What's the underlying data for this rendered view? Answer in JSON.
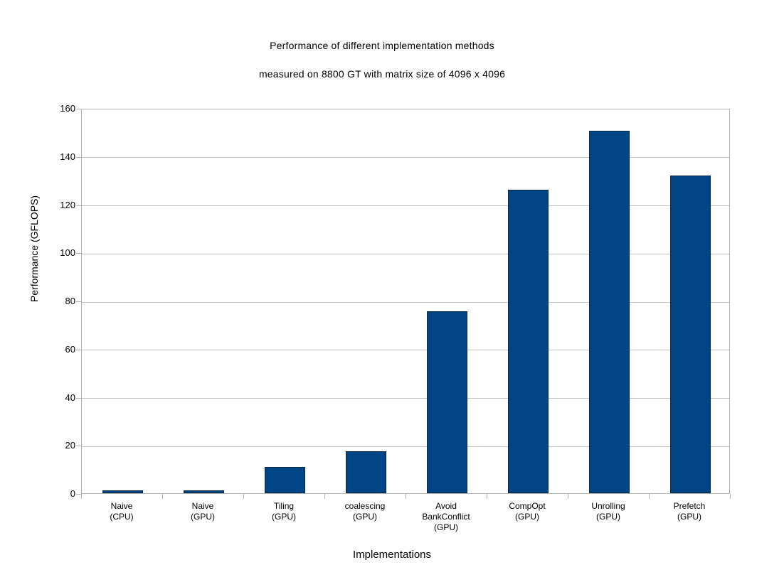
{
  "chart_data": {
    "type": "bar",
    "title": "Performance of different implementation methods",
    "subtitle": "measured on 8800 GT with matrix size of 4096 x 4096",
    "xlabel": "Implementations",
    "ylabel": "Performance (GFLOPS)",
    "categories": [
      "Naive (CPU)",
      "Naive (GPU)",
      "Tiling (GPU)",
      "coalescing (GPU)",
      "Avoid BankConflict (GPU)",
      "CompOpt (GPU)",
      "Unrolling (GPU)",
      "Prefetch (GPU)"
    ],
    "category_label_lines": [
      [
        "Naive",
        "(CPU)"
      ],
      [
        "Naive",
        "(GPU)"
      ],
      [
        "Tiling",
        "(GPU)"
      ],
      [
        "coalescing",
        "(GPU)"
      ],
      [
        "Avoid",
        "BankConflict",
        "(GPU)"
      ],
      [
        "CompOpt",
        "(GPU)"
      ],
      [
        "Unrolling",
        "(GPU)"
      ],
      [
        "Prefetch",
        "(GPU)"
      ]
    ],
    "values": [
      1.2,
      1.2,
      11,
      17.5,
      75.5,
      126,
      150.5,
      132
    ],
    "ylim": [
      0,
      160
    ],
    "ytick_interval": 20,
    "yticks": [
      0,
      20,
      40,
      60,
      80,
      100,
      120,
      140,
      160
    ],
    "grid": "horizontal",
    "legend": "none",
    "colors": {
      "bar_fill": "#004586",
      "bar_border": "#0c2743",
      "grid_line": "#c2c2c2",
      "axis_line": "#b3b3b3",
      "text": "#000000",
      "background": "#ffffff"
    }
  }
}
